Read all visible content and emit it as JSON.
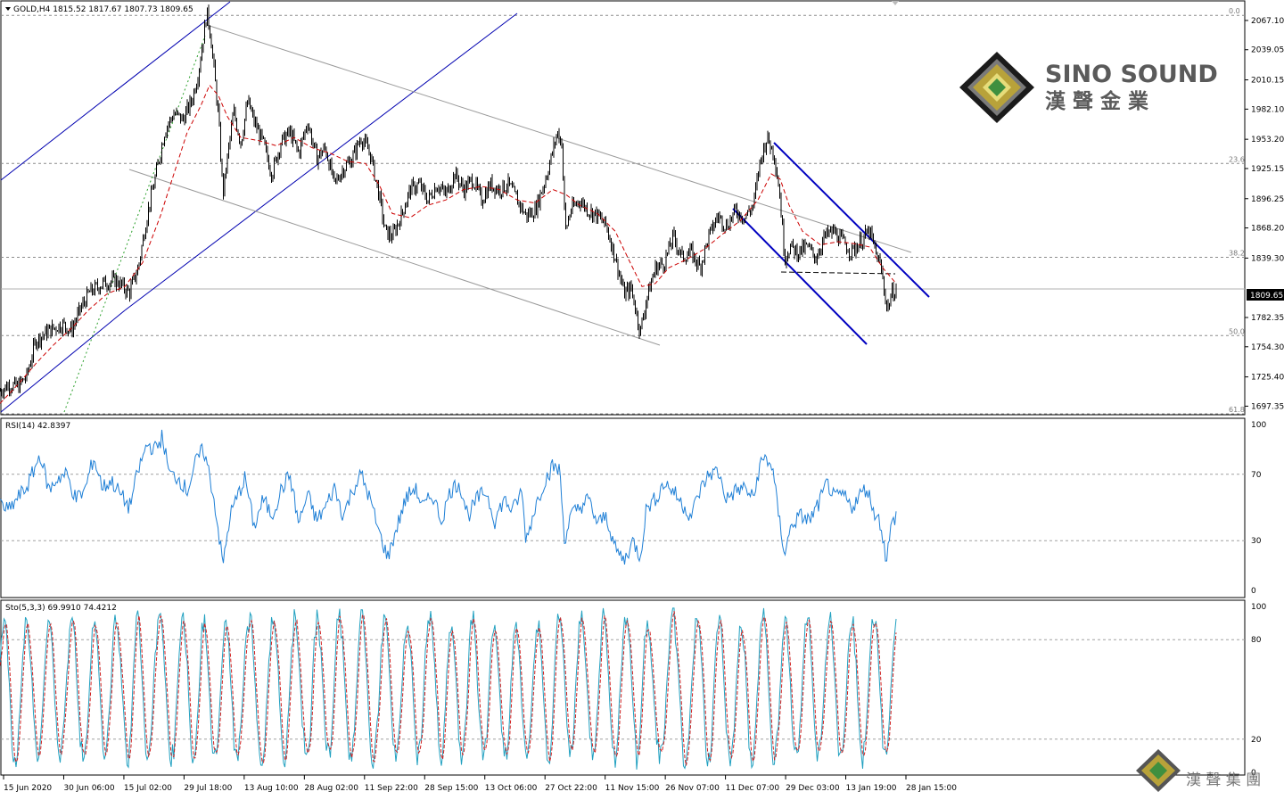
{
  "chart_data": [
    {
      "type": "line",
      "symbol": "GOLD",
      "timeframe": "H4",
      "header": "GOLD,H4  1815.52 1817.67 1807.73 1809.65",
      "ohlc": {
        "open": 1815.52,
        "high": 1817.67,
        "low": 1807.73,
        "close": 1809.65
      },
      "current_price_label": "1809.65",
      "y_ticks": [
        "2067.10",
        "2039.05",
        "2010.15",
        "1982.10",
        "1953.20",
        "1925.15",
        "1896.25",
        "1868.20",
        "1839.30",
        "1782.35",
        "1754.30",
        "1725.40",
        "1697.35"
      ],
      "ylim": [
        1690,
        2085
      ],
      "x_ticks": [
        "15 Jun 2020",
        "30 Jun 06:00",
        "15 Jul 02:00",
        "29 Jul 18:00",
        "13 Aug 10:00",
        "28 Aug 02:00",
        "11 Sep 22:00",
        "28 Sep 15:00",
        "13 Oct 06:00",
        "27 Oct 22:00",
        "11 Nov 15:00",
        "26 Nov 07:00",
        "11 Dec 07:00",
        "29 Dec 03:00",
        "13 Jan 19:00",
        "28 Jan 15:00"
      ],
      "fibonacci_levels": [
        {
          "label": "0.0",
          "price": 2072
        },
        {
          "label": "23.6",
          "price": 1930
        },
        {
          "label": "38.2",
          "price": 1840
        },
        {
          "label": "50.0",
          "price": 1765
        },
        {
          "label": "61.8",
          "price": 1690
        }
      ],
      "close_path": [
        [
          0,
          1712
        ],
        [
          10,
          1718
        ],
        [
          20,
          1716
        ],
        [
          30,
          1726
        ],
        [
          40,
          1760
        ],
        [
          55,
          1770
        ],
        [
          70,
          1776
        ],
        [
          80,
          1770
        ],
        [
          90,
          1790
        ],
        [
          100,
          1806
        ],
        [
          115,
          1815
        ],
        [
          130,
          1818
        ],
        [
          145,
          1806
        ],
        [
          155,
          1830
        ],
        [
          165,
          1880
        ],
        [
          175,
          1920
        ],
        [
          185,
          1962
        ],
        [
          195,
          1978
        ],
        [
          205,
          1972
        ],
        [
          215,
          1990
        ],
        [
          222,
          2015
        ],
        [
          228,
          2050
        ],
        [
          232,
          2075
        ],
        [
          236,
          2055
        ],
        [
          240,
          2020
        ],
        [
          245,
          1975
        ],
        [
          250,
          1900
        ],
        [
          255,
          1935
        ],
        [
          262,
          1980
        ],
        [
          270,
          1950
        ],
        [
          278,
          1990
        ],
        [
          285,
          1970
        ],
        [
          295,
          1950
        ],
        [
          305,
          1920
        ],
        [
          315,
          1950
        ],
        [
          325,
          1960
        ],
        [
          335,
          1940
        ],
        [
          345,
          1970
        ],
        [
          355,
          1935
        ],
        [
          365,
          1945
        ],
        [
          375,
          1910
        ],
        [
          385,
          1925
        ],
        [
          395,
          1935
        ],
        [
          405,
          1955
        ],
        [
          415,
          1940
        ],
        [
          425,
          1900
        ],
        [
          432,
          1865
        ],
        [
          440,
          1860
        ],
        [
          450,
          1880
        ],
        [
          460,
          1905
        ],
        [
          470,
          1910
        ],
        [
          480,
          1895
        ],
        [
          490,
          1910
        ],
        [
          500,
          1900
        ],
        [
          510,
          1920
        ],
        [
          520,
          1905
        ],
        [
          530,
          1915
        ],
        [
          540,
          1895
        ],
        [
          550,
          1910
        ],
        [
          560,
          1905
        ],
        [
          570,
          1910
        ],
        [
          580,
          1895
        ],
        [
          590,
          1880
        ],
        [
          600,
          1885
        ],
        [
          610,
          1910
        ],
        [
          618,
          1935
        ],
        [
          625,
          1960
        ],
        [
          630,
          1950
        ],
        [
          634,
          1865
        ],
        [
          640,
          1885
        ],
        [
          650,
          1895
        ],
        [
          660,
          1885
        ],
        [
          670,
          1880
        ],
        [
          680,
          1870
        ],
        [
          690,
          1840
        ],
        [
          700,
          1805
        ],
        [
          708,
          1810
        ],
        [
          713,
          1790
        ],
        [
          718,
          1768
        ],
        [
          725,
          1800
        ],
        [
          735,
          1830
        ],
        [
          745,
          1835
        ],
        [
          755,
          1860
        ],
        [
          765,
          1840
        ],
        [
          775,
          1845
        ],
        [
          785,
          1830
        ],
        [
          795,
          1860
        ],
        [
          805,
          1880
        ],
        [
          815,
          1870
        ],
        [
          825,
          1885
        ],
        [
          835,
          1878
        ],
        [
          845,
          1890
        ],
        [
          852,
          1930
        ],
        [
          860,
          1955
        ],
        [
          868,
          1940
        ],
        [
          874,
          1905
        ],
        [
          880,
          1840
        ],
        [
          886,
          1850
        ],
        [
          895,
          1845
        ],
        [
          905,
          1850
        ],
        [
          915,
          1840
        ],
        [
          925,
          1860
        ],
        [
          935,
          1865
        ],
        [
          945,
          1855
        ],
        [
          955,
          1845
        ],
        [
          965,
          1855
        ],
        [
          975,
          1865
        ],
        [
          982,
          1845
        ],
        [
          988,
          1830
        ],
        [
          995,
          1790
        ],
        [
          1000,
          1805
        ],
        [
          1005,
          1810
        ]
      ],
      "ma_path": [
        [
          0,
          1700
        ],
        [
          20,
          1718
        ],
        [
          40,
          1738
        ],
        [
          60,
          1756
        ],
        [
          80,
          1772
        ],
        [
          100,
          1790
        ],
        [
          120,
          1805
        ],
        [
          140,
          1812
        ],
        [
          160,
          1835
        ],
        [
          180,
          1880
        ],
        [
          195,
          1920
        ],
        [
          210,
          1960
        ],
        [
          225,
          1985
        ],
        [
          235,
          2005
        ],
        [
          245,
          1995
        ],
        [
          255,
          1975
        ],
        [
          270,
          1955
        ],
        [
          290,
          1952
        ],
        [
          310,
          1947
        ],
        [
          330,
          1955
        ],
        [
          350,
          1945
        ],
        [
          370,
          1940
        ],
        [
          390,
          1932
        ],
        [
          410,
          1930
        ],
        [
          425,
          1910
        ],
        [
          440,
          1882
        ],
        [
          460,
          1878
        ],
        [
          480,
          1890
        ],
        [
          500,
          1895
        ],
        [
          520,
          1905
        ],
        [
          540,
          1908
        ],
        [
          560,
          1905
        ],
        [
          580,
          1895
        ],
        [
          600,
          1892
        ],
        [
          620,
          1905
        ],
        [
          635,
          1900
        ],
        [
          650,
          1890
        ],
        [
          670,
          1882
        ],
        [
          690,
          1865
        ],
        [
          705,
          1838
        ],
        [
          720,
          1812
        ],
        [
          735,
          1815
        ],
        [
          750,
          1830
        ],
        [
          770,
          1838
        ],
        [
          790,
          1848
        ],
        [
          810,
          1862
        ],
        [
          830,
          1875
        ],
        [
          850,
          1895
        ],
        [
          865,
          1920
        ],
        [
          875,
          1915
        ],
        [
          885,
          1890
        ],
        [
          900,
          1865
        ],
        [
          920,
          1852
        ],
        [
          940,
          1855
        ],
        [
          960,
          1853
        ],
        [
          975,
          1850
        ],
        [
          990,
          1830
        ],
        [
          1005,
          1815
        ]
      ]
    },
    {
      "type": "line",
      "indicator": "RSI(14)",
      "header": "RSI(14) 42.8397",
      "value": 42.8397,
      "ylim": [
        0,
        100
      ],
      "y_ticks": [
        "100",
        "70",
        "30",
        "0"
      ],
      "levels": [
        70,
        30
      ],
      "path": [
        [
          0,
          52
        ],
        [
          10,
          48
        ],
        [
          20,
          56
        ],
        [
          30,
          62
        ],
        [
          40,
          75
        ],
        [
          45,
          82
        ],
        [
          55,
          60
        ],
        [
          65,
          68
        ],
        [
          75,
          70
        ],
        [
          85,
          55
        ],
        [
          95,
          60
        ],
        [
          105,
          80
        ],
        [
          115,
          62
        ],
        [
          125,
          66
        ],
        [
          135,
          58
        ],
        [
          145,
          50
        ],
        [
          155,
          72
        ],
        [
          165,
          88
        ],
        [
          175,
          85
        ],
        [
          182,
          93
        ],
        [
          190,
          70
        ],
        [
          200,
          68
        ],
        [
          210,
          60
        ],
        [
          220,
          78
        ],
        [
          228,
          85
        ],
        [
          235,
          70
        ],
        [
          242,
          48
        ],
        [
          250,
          15
        ],
        [
          258,
          45
        ],
        [
          265,
          55
        ],
        [
          275,
          68
        ],
        [
          285,
          38
        ],
        [
          295,
          55
        ],
        [
          305,
          45
        ],
        [
          315,
          60
        ],
        [
          325,
          70
        ],
        [
          335,
          40
        ],
        [
          345,
          58
        ],
        [
          355,
          42
        ],
        [
          365,
          50
        ],
        [
          375,
          62
        ],
        [
          385,
          45
        ],
        [
          395,
          60
        ],
        [
          405,
          70
        ],
        [
          415,
          55
        ],
        [
          425,
          35
        ],
        [
          435,
          20
        ],
        [
          445,
          38
        ],
        [
          455,
          55
        ],
        [
          465,
          62
        ],
        [
          475,
          50
        ],
        [
          485,
          58
        ],
        [
          495,
          42
        ],
        [
          505,
          60
        ],
        [
          515,
          65
        ],
        [
          525,
          45
        ],
        [
          535,
          55
        ],
        [
          545,
          60
        ],
        [
          555,
          42
        ],
        [
          565,
          55
        ],
        [
          575,
          48
        ],
        [
          585,
          60
        ],
        [
          590,
          30
        ],
        [
          600,
          50
        ],
        [
          610,
          65
        ],
        [
          620,
          75
        ],
        [
          628,
          72
        ],
        [
          633,
          30
        ],
        [
          640,
          45
        ],
        [
          650,
          50
        ],
        [
          660,
          55
        ],
        [
          670,
          40
        ],
        [
          680,
          45
        ],
        [
          690,
          25
        ],
        [
          700,
          18
        ],
        [
          710,
          30
        ],
        [
          718,
          20
        ],
        [
          725,
          50
        ],
        [
          735,
          55
        ],
        [
          745,
          65
        ],
        [
          755,
          60
        ],
        [
          765,
          52
        ],
        [
          775,
          45
        ],
        [
          785,
          60
        ],
        [
          795,
          70
        ],
        [
          805,
          72
        ],
        [
          815,
          55
        ],
        [
          825,
          60
        ],
        [
          835,
          62
        ],
        [
          845,
          55
        ],
        [
          852,
          75
        ],
        [
          858,
          80
        ],
        [
          866,
          75
        ],
        [
          872,
          50
        ],
        [
          880,
          22
        ],
        [
          888,
          40
        ],
        [
          898,
          45
        ],
        [
          908,
          42
        ],
        [
          918,
          52
        ],
        [
          928,
          65
        ],
        [
          936,
          55
        ],
        [
          945,
          58
        ],
        [
          955,
          50
        ],
        [
          965,
          58
        ],
        [
          972,
          62
        ],
        [
          980,
          48
        ],
        [
          988,
          40
        ],
        [
          994,
          18
        ],
        [
          1000,
          40
        ],
        [
          1005,
          45
        ]
      ]
    },
    {
      "type": "line",
      "indicator": "Sto(5,3,3)",
      "header": "Sto(5,3,3) 69.9910 74.4212",
      "main": 69.991,
      "signal": 74.4212,
      "ylim": [
        0,
        100
      ],
      "y_ticks": [
        "100",
        "80",
        "20",
        "0"
      ],
      "levels": [
        80,
        20
      ],
      "colors": {
        "main": "#20a0c0",
        "signal": "#d02020"
      }
    }
  ],
  "logo": {
    "brand_line1": "SINO SOUND",
    "brand_line2": "漢 聲 金 業",
    "footer_line": "漢  聲  集  團"
  },
  "colors": {
    "price": "#000000",
    "ma": "#cc0000",
    "fib": "#a0a0a0",
    "channel": "#0000b0",
    "rsi": "#1e7fd6",
    "logo_text": "#595959",
    "logo_gold": "#b8a23a"
  }
}
